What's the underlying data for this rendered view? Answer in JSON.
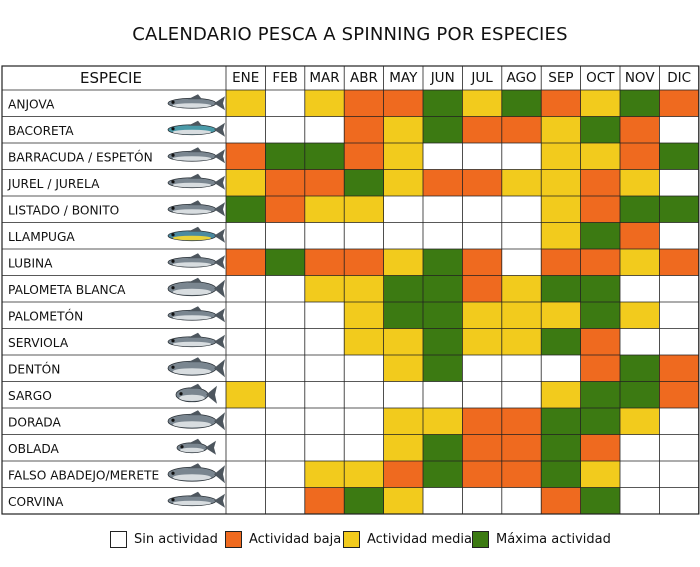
{
  "title": "CALENDARIO PESCA A SPINNING POR ESPECIES",
  "chart_data": {
    "type": "heatmap",
    "row_header": "ESPECIE",
    "months": [
      "ENE",
      "FEB",
      "MAR",
      "ABR",
      "MAY",
      "JUN",
      "JUL",
      "AGO",
      "SEP",
      "OCT",
      "NOV",
      "DIC"
    ],
    "levels": {
      "0": {
        "label": "Sin actividad",
        "color": "#ffffff"
      },
      "1": {
        "label": "Actividad baja",
        "color": "#ef6a1f"
      },
      "2": {
        "label": "Actividad media",
        "color": "#f2cb1d"
      },
      "3": {
        "label": "Máxima actividad",
        "color": "#3c7a12"
      }
    },
    "species": [
      {
        "name": "ANJOVA",
        "icon": "bluefish-icon",
        "values": [
          2,
          0,
          2,
          1,
          1,
          3,
          2,
          3,
          1,
          2,
          3,
          1
        ]
      },
      {
        "name": "BACORETA",
        "icon": "tuna-icon",
        "values": [
          0,
          0,
          0,
          1,
          2,
          3,
          1,
          1,
          2,
          3,
          1,
          0
        ]
      },
      {
        "name": "BARRACUDA / ESPETÓN",
        "icon": "barracuda-icon",
        "values": [
          1,
          3,
          3,
          1,
          2,
          0,
          0,
          0,
          2,
          2,
          1,
          3
        ]
      },
      {
        "name": "JUREL / JURELA",
        "icon": "jack-icon",
        "values": [
          2,
          1,
          1,
          3,
          2,
          1,
          1,
          2,
          2,
          1,
          2,
          0
        ]
      },
      {
        "name": "LISTADO / BONITO",
        "icon": "bonito-icon",
        "values": [
          3,
          1,
          2,
          2,
          0,
          0,
          0,
          0,
          2,
          1,
          3,
          3
        ]
      },
      {
        "name": "LLAMPUGA",
        "icon": "dorado-icon",
        "values": [
          0,
          0,
          0,
          0,
          0,
          0,
          0,
          0,
          2,
          3,
          1,
          0
        ]
      },
      {
        "name": "LUBINA",
        "icon": "seabass-icon",
        "values": [
          1,
          3,
          1,
          1,
          2,
          3,
          1,
          0,
          1,
          1,
          2,
          1
        ]
      },
      {
        "name": "PALOMETA BLANCA",
        "icon": "pompano-icon",
        "values": [
          0,
          0,
          2,
          2,
          3,
          3,
          1,
          2,
          3,
          3,
          0,
          0
        ]
      },
      {
        "name": "PALOMETÓN",
        "icon": "leerfish-icon",
        "values": [
          0,
          0,
          0,
          2,
          3,
          3,
          2,
          2,
          2,
          3,
          2,
          0
        ]
      },
      {
        "name": "SERVIOLA",
        "icon": "amberjack-icon",
        "values": [
          0,
          0,
          0,
          2,
          2,
          3,
          2,
          2,
          3,
          1,
          0,
          0
        ]
      },
      {
        "name": "DENTÓN",
        "icon": "dentex-icon",
        "values": [
          0,
          0,
          0,
          0,
          2,
          3,
          0,
          0,
          0,
          1,
          3,
          1
        ]
      },
      {
        "name": "SARGO",
        "icon": "seabream-icon",
        "values": [
          2,
          0,
          0,
          0,
          0,
          0,
          0,
          0,
          2,
          3,
          3,
          1
        ]
      },
      {
        "name": "DORADA",
        "icon": "gilthead-icon",
        "values": [
          0,
          0,
          0,
          0,
          2,
          2,
          1,
          1,
          3,
          3,
          2,
          0
        ]
      },
      {
        "name": "OBLADA",
        "icon": "saddled-bream-icon",
        "values": [
          0,
          0,
          0,
          0,
          2,
          3,
          1,
          1,
          3,
          1,
          0,
          0
        ]
      },
      {
        "name": "FALSO ABADEJO/MERETE",
        "icon": "grouper-icon",
        "values": [
          0,
          0,
          2,
          2,
          1,
          3,
          1,
          1,
          3,
          2,
          0,
          0
        ]
      },
      {
        "name": "CORVINA",
        "icon": "meagre-icon",
        "values": [
          0,
          0,
          1,
          3,
          2,
          0,
          0,
          0,
          1,
          3,
          0,
          0
        ]
      }
    ]
  }
}
